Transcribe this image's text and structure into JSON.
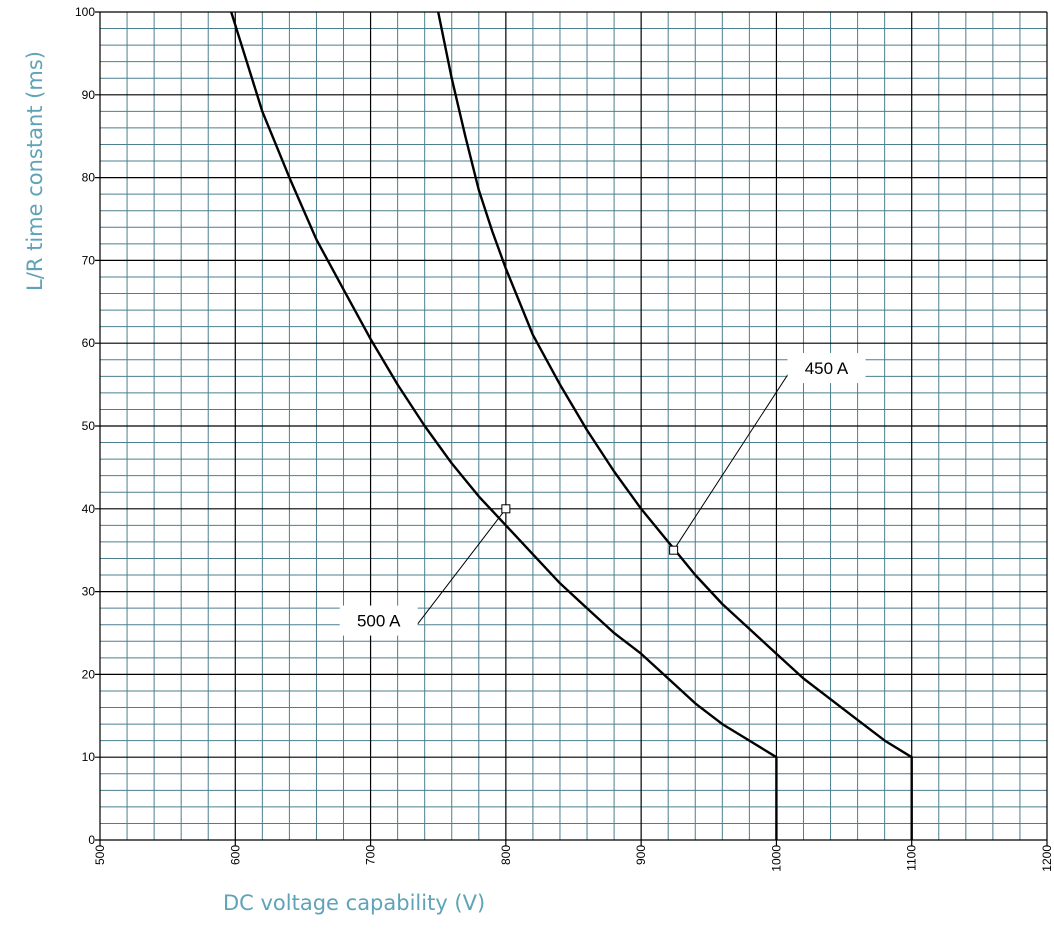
{
  "chart_data": {
    "type": "line",
    "title": "",
    "xlabel": "DC voltage capability (V)",
    "ylabel": "L/R time constant (ms)",
    "xlim": [
      500,
      1200
    ],
    "ylim": [
      0,
      100
    ],
    "x_ticks": [
      "500",
      "600",
      "700",
      "800",
      "900",
      "1000",
      "1100",
      "1200"
    ],
    "y_ticks": [
      "0",
      "10",
      "20",
      "30",
      "40",
      "50",
      "60",
      "70",
      "80",
      "90",
      "100"
    ],
    "grid": {
      "major": true,
      "minor": true,
      "minor_step_x": 20,
      "minor_step_y": 2
    },
    "series": [
      {
        "name": "500 A",
        "x": [
          597,
          620,
          640,
          660,
          680,
          700,
          720,
          740,
          760,
          780,
          800,
          820,
          840,
          860,
          880,
          900,
          920,
          940,
          960,
          980,
          1000,
          1000
        ],
        "y": [
          100,
          88,
          80,
          72.5,
          66.5,
          60.5,
          55,
          50,
          45.5,
          41.5,
          38,
          34.5,
          31,
          28,
          25,
          22.5,
          19.5,
          16.5,
          14,
          12,
          10,
          0
        ]
      },
      {
        "name": "450 A",
        "x": [
          750,
          760,
          770,
          780,
          790,
          800,
          820,
          840,
          860,
          880,
          900,
          920,
          940,
          960,
          980,
          1000,
          1020,
          1040,
          1060,
          1080,
          1100,
          1100
        ],
        "y": [
          100,
          92,
          85,
          78.5,
          73.5,
          69,
          61,
          55,
          49.5,
          44.5,
          40,
          36,
          32,
          28.5,
          25.5,
          22.5,
          19.5,
          17,
          14.5,
          12,
          10,
          0
        ]
      }
    ],
    "annotations": [
      {
        "text": "500 A",
        "series": "500 A",
        "point": [
          800,
          40
        ],
        "label_at": [
          706,
          26.5
        ]
      },
      {
        "text": "450 A",
        "series": "450 A",
        "point": [
          924,
          35
        ],
        "label_at": [
          1037,
          57
        ]
      }
    ],
    "colors": {
      "major_grid": "#000000",
      "minor_grid": "#4b7f8f",
      "curve": "#000000",
      "axis_title": "#5ea3b7"
    }
  }
}
